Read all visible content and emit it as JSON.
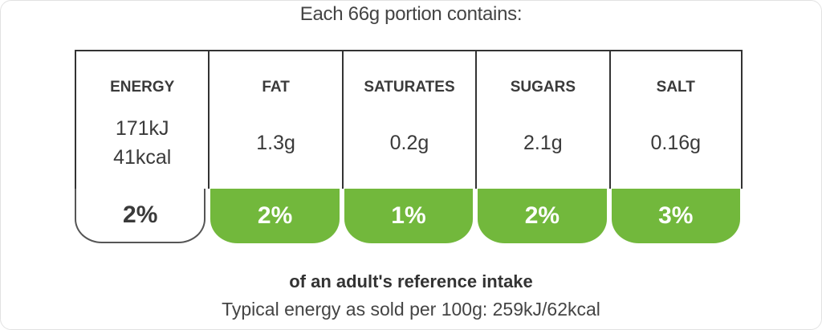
{
  "header": {
    "title": "Each 66g portion contains:"
  },
  "columns": [
    {
      "name": "ENERGY",
      "amounts": [
        "171kJ",
        "41kcal"
      ],
      "percent": "2%"
    },
    {
      "name": "FAT",
      "amounts": [
        "1.3g"
      ],
      "percent": "2%"
    },
    {
      "name": "SATURATES",
      "amounts": [
        "0.2g"
      ],
      "percent": "1%"
    },
    {
      "name": "SUGARS",
      "amounts": [
        "2.1g"
      ],
      "percent": "2%"
    },
    {
      "name": "SALT",
      "amounts": [
        "0.16g"
      ],
      "percent": "3%"
    }
  ],
  "footer": {
    "reference": "of an adult's reference intake",
    "typical": "Typical energy as sold per 100g: 259kJ/62kcal"
  }
}
